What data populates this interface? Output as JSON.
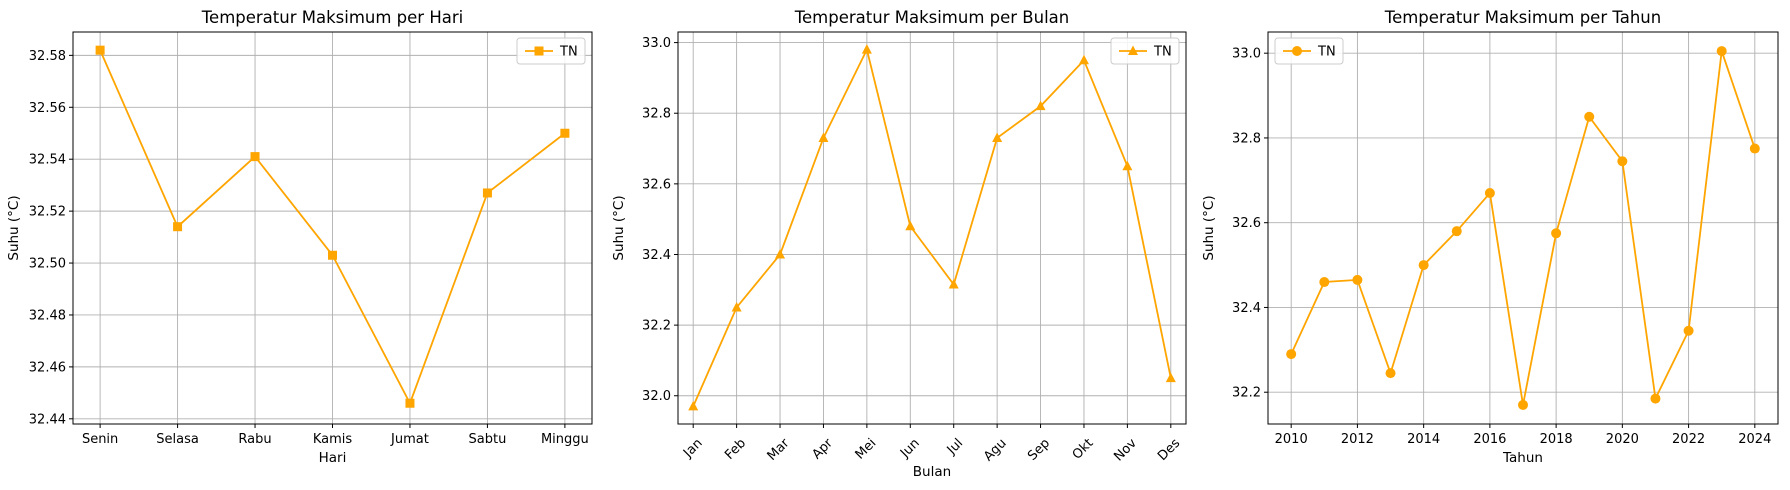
{
  "colors": {
    "series": "#ffa500",
    "grid": "#b0b0b0",
    "axis": "#000000",
    "legend_border": "#cccccc"
  },
  "chart_data": [
    {
      "type": "line",
      "title": "Temperatur Maksimum per Hari",
      "xlabel": "Hari",
      "ylabel": "Suhu (°C)",
      "categories": [
        "Senin",
        "Selasa",
        "Rabu",
        "Kamis",
        "Jumat",
        "Sabtu",
        "Minggu"
      ],
      "series": [
        {
          "name": "TN",
          "marker": "square",
          "values": [
            32.582,
            32.514,
            32.541,
            32.503,
            32.446,
            32.527,
            32.55
          ]
        }
      ],
      "ylim": [
        32.438,
        32.589
      ],
      "yticks": [
        "32.44",
        "32.46",
        "32.48",
        "32.50",
        "32.52",
        "32.54",
        "32.56",
        "32.58"
      ],
      "ytick_values": [
        32.44,
        32.46,
        32.48,
        32.5,
        32.52,
        32.54,
        32.56,
        32.58
      ],
      "xtick_rotation": 0,
      "grid": true,
      "legend_position": "upper right"
    },
    {
      "type": "line",
      "title": "Temperatur Maksimum per Bulan",
      "xlabel": "Bulan",
      "ylabel": "Suhu (°C)",
      "categories": [
        "Jan",
        "Feb",
        "Mar",
        "Apr",
        "Mei",
        "Jun",
        "Jul",
        "Agu",
        "Sep",
        "Okt",
        "Nov",
        "Des"
      ],
      "series": [
        {
          "name": "TN",
          "marker": "triangle",
          "values": [
            31.97,
            32.25,
            32.4,
            32.73,
            32.98,
            32.48,
            32.315,
            32.73,
            32.82,
            32.95,
            32.65,
            32.05
          ]
        }
      ],
      "ylim": [
        31.92,
        33.03
      ],
      "yticks": [
        "32.0",
        "32.2",
        "32.4",
        "32.6",
        "32.8",
        "33.0"
      ],
      "ytick_values": [
        32.0,
        32.2,
        32.4,
        32.6,
        32.8,
        33.0
      ],
      "xtick_rotation": -45,
      "grid": true,
      "legend_position": "upper right"
    },
    {
      "type": "line",
      "title": "Temperatur Maksimum per Tahun",
      "xlabel": "Tahun",
      "ylabel": "Suhu (°C)",
      "x": [
        2010,
        2011,
        2012,
        2013,
        2014,
        2015,
        2016,
        2017,
        2018,
        2019,
        2020,
        2021,
        2022,
        2023,
        2024
      ],
      "series": [
        {
          "name": "TN",
          "marker": "circle",
          "values": [
            32.29,
            32.46,
            32.465,
            32.245,
            32.5,
            32.58,
            32.67,
            32.17,
            32.575,
            32.85,
            32.745,
            32.185,
            32.345,
            33.005,
            32.775
          ]
        }
      ],
      "xlim": [
        2009.3,
        2024.7
      ],
      "xticks": [
        "2010",
        "2012",
        "2014",
        "2016",
        "2018",
        "2020",
        "2022",
        "2024"
      ],
      "xtick_values": [
        2010,
        2012,
        2014,
        2016,
        2018,
        2020,
        2022,
        2024
      ],
      "ylim": [
        32.125,
        33.05
      ],
      "yticks": [
        "32.2",
        "32.4",
        "32.6",
        "32.8",
        "33.0"
      ],
      "ytick_values": [
        32.2,
        32.4,
        32.6,
        32.8,
        33.0
      ],
      "xtick_rotation": 0,
      "grid": true,
      "legend_position": "upper left"
    }
  ]
}
